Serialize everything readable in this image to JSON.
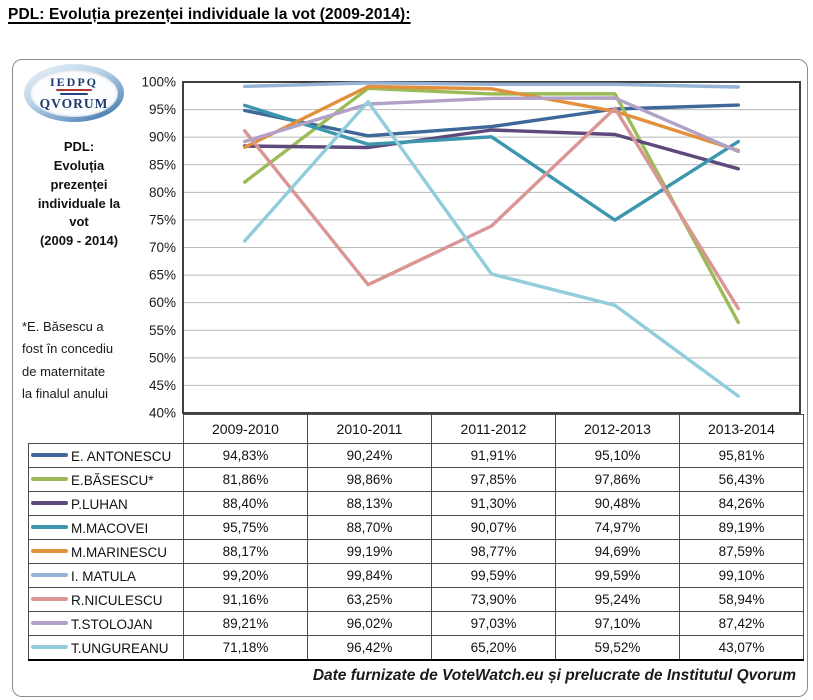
{
  "page": {
    "title": "PDL: Evoluția prezenței individuale la vot (2009-2014):",
    "caption": "Date furnizate de VoteWatch.eu și prelucrate de Institutul Qvorum"
  },
  "logo": {
    "acronym": "IEDPQ",
    "name": "QVORUM"
  },
  "sidebar": {
    "heading": "PDL:\nEvoluția\nprezenței\nindividuale la\nvot\n(2009 - 2014)",
    "footnote": "*E. Băsescu a\nfost în concediu\nde maternitate\nla finalul anului"
  },
  "chart_data": {
    "type": "line",
    "title": "PDL: Evoluția prezenței individuale la vot (2009 - 2014)",
    "categories": [
      "2009-2010",
      "2010-2011",
      "2011-2012",
      "2012-2013",
      "2013-2014"
    ],
    "series": [
      {
        "name": "E. ANTONESCU",
        "color": "#3D6899",
        "values": [
          94.83,
          90.24,
          91.91,
          95.1,
          95.81
        ]
      },
      {
        "name": "E.BĂSESCU*",
        "color": "#9BBB59",
        "values": [
          81.86,
          98.86,
          97.85,
          97.86,
          56.43
        ]
      },
      {
        "name": "P.LUHAN",
        "color": "#5F497A",
        "values": [
          88.4,
          88.13,
          91.3,
          90.48,
          84.26
        ]
      },
      {
        "name": "M.MACOVEI",
        "color": "#3C96AE",
        "values": [
          95.75,
          88.7,
          90.07,
          74.97,
          89.19
        ]
      },
      {
        "name": "M.MARINESCU",
        "color": "#E2903D",
        "values": [
          88.17,
          99.19,
          98.77,
          94.69,
          87.59
        ]
      },
      {
        "name": "I. MATULA",
        "color": "#95B3D7",
        "values": [
          99.2,
          99.84,
          99.59,
          99.59,
          99.1
        ]
      },
      {
        "name": "R.NICULESCU",
        "color": "#D99694",
        "values": [
          91.16,
          63.25,
          73.9,
          95.24,
          58.94
        ]
      },
      {
        "name": "T.STOLOJAN",
        "color": "#B2A1C7",
        "values": [
          89.21,
          96.02,
          97.03,
          97.1,
          87.42
        ]
      },
      {
        "name": "T.UNGUREANU",
        "color": "#92CDDC",
        "values": [
          71.18,
          96.42,
          65.2,
          59.52,
          43.07
        ]
      }
    ],
    "ylim": [
      40,
      100
    ],
    "ytick_step": 5,
    "ytick_suffix": "%",
    "grid": true,
    "gridline_color": "#b9b9b9",
    "plot_border_color": "#404040",
    "legend_position": "table-left"
  },
  "table": {
    "decimal_separator": ",",
    "value_suffix": "%"
  }
}
